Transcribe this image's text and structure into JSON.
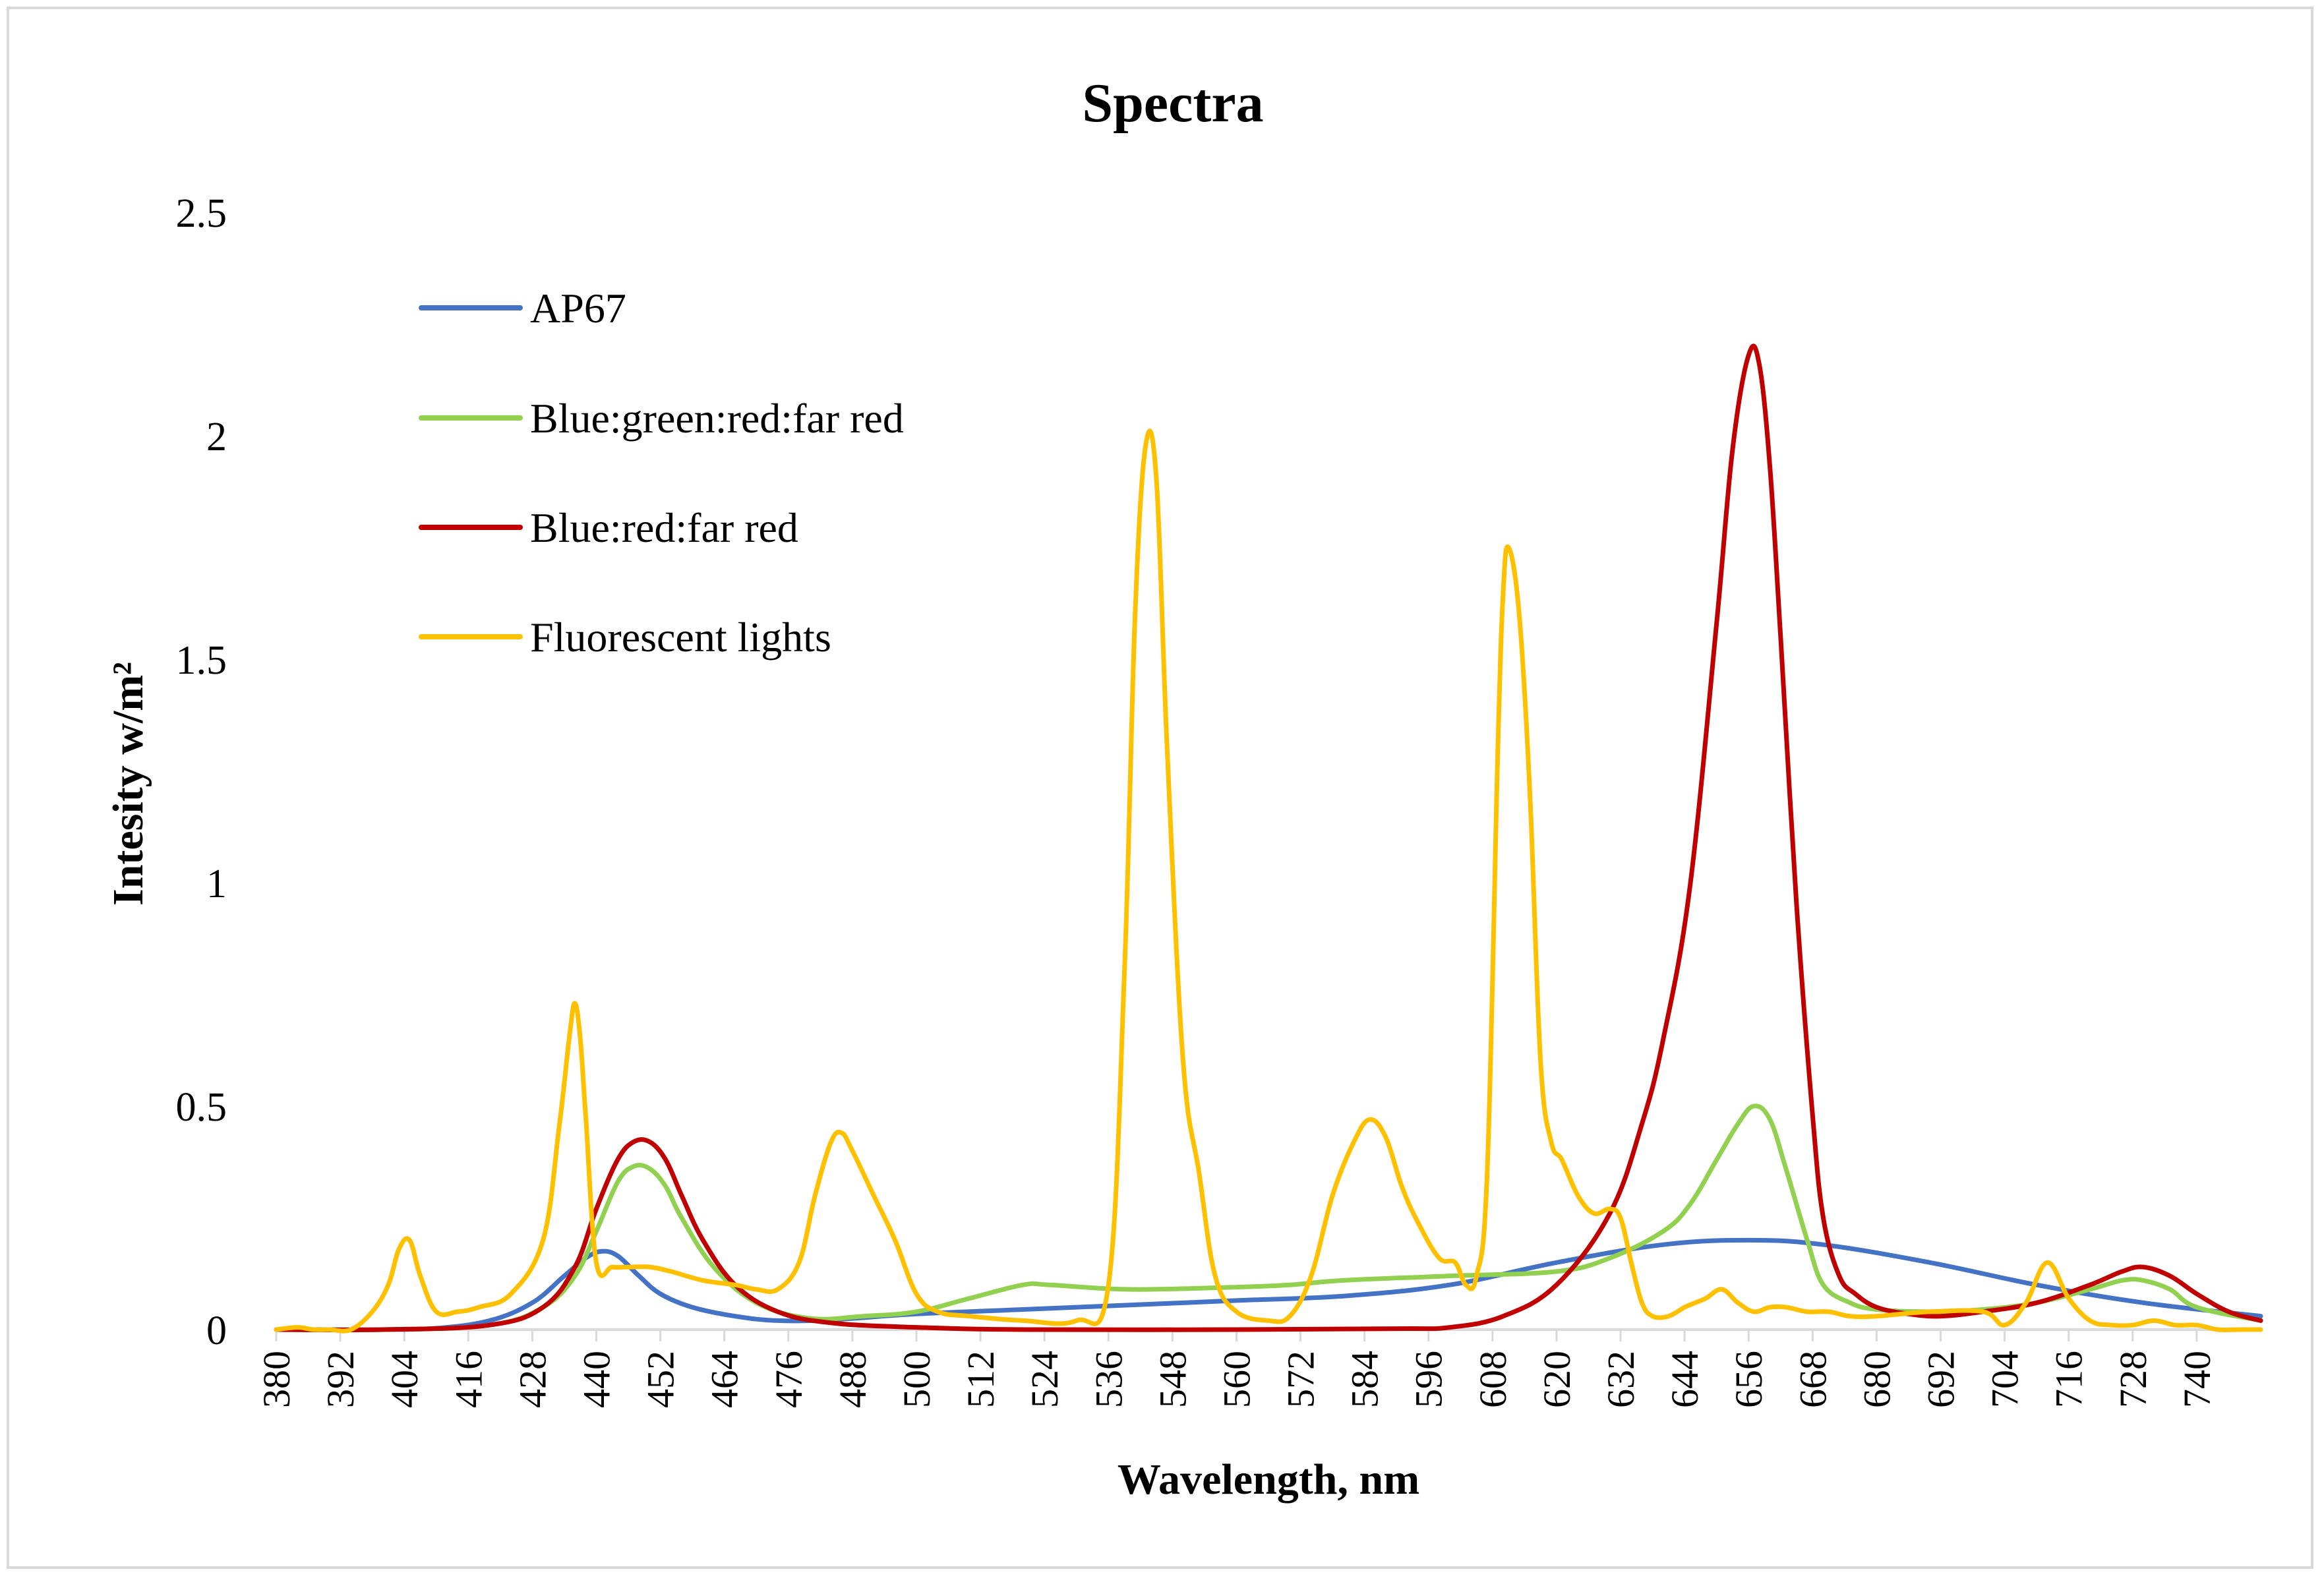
{
  "chart_data": {
    "type": "line",
    "title": "Spectra",
    "xlabel": "Wavelength, nm",
    "ylabel": "Intesity w/m²",
    "ylim": [
      0,
      2.5
    ],
    "yticks": [
      "0",
      "0.5",
      "1",
      "1.5",
      "2",
      "2.5"
    ],
    "xlim": [
      380,
      752
    ],
    "xticks": [
      "380",
      "392",
      "404",
      "416",
      "428",
      "440",
      "452",
      "464",
      "476",
      "488",
      "500",
      "512",
      "524",
      "536",
      "548",
      "560",
      "572",
      "584",
      "596",
      "608",
      "620",
      "632",
      "644",
      "656",
      "668",
      "680",
      "692",
      "704",
      "716",
      "728",
      "740"
    ],
    "grid": false,
    "legend_position": "top-left",
    "series": [
      {
        "name": "AP67",
        "color": "#4472c4",
        "x": [
          380,
          390,
          400,
          410,
          420,
          428,
          434,
          438,
          441,
          444,
          448,
          452,
          458,
          466,
          474,
          484,
          500,
          520,
          540,
          560,
          580,
          600,
          620,
          640,
          656,
          670,
          690,
          710,
          730,
          752
        ],
        "y": [
          0,
          0,
          0,
          0.003,
          0.02,
          0.06,
          0.12,
          0.16,
          0.175,
          0.165,
          0.12,
          0.08,
          0.05,
          0.03,
          0.02,
          0.022,
          0.035,
          0.045,
          0.055,
          0.065,
          0.075,
          0.1,
          0.15,
          0.19,
          0.2,
          0.19,
          0.15,
          0.1,
          0.06,
          0.03
        ]
      },
      {
        "name": "Blue:green:red:far red",
        "color": "#92d050",
        "x": [
          380,
          400,
          420,
          430,
          436,
          440,
          444,
          447,
          450,
          453,
          456,
          462,
          470,
          480,
          490,
          500,
          510,
          520,
          525,
          540,
          560,
          570,
          580,
          600,
          620,
          630,
          640,
          645,
          650,
          654,
          657,
          660,
          663,
          667,
          670,
          675,
          680,
          690,
          700,
          710,
          720,
          726,
          730,
          735,
          740,
          752
        ],
        "y": [
          0,
          0,
          0.01,
          0.05,
          0.12,
          0.22,
          0.33,
          0.365,
          0.36,
          0.32,
          0.25,
          0.14,
          0.06,
          0.025,
          0.03,
          0.04,
          0.07,
          0.1,
          0.1,
          0.09,
          0.095,
          0.1,
          0.11,
          0.12,
          0.13,
          0.16,
          0.22,
          0.28,
          0.38,
          0.46,
          0.5,
          0.47,
          0.36,
          0.2,
          0.1,
          0.06,
          0.045,
          0.04,
          0.045,
          0.06,
          0.09,
          0.11,
          0.11,
          0.09,
          0.05,
          0.02
        ]
      },
      {
        "name": "Blue:red:far red",
        "color": "#c00000",
        "x": [
          380,
          400,
          420,
          430,
          436,
          440,
          444,
          447,
          450,
          453,
          456,
          460,
          466,
          474,
          484,
          500,
          520,
          560,
          590,
          600,
          610,
          620,
          630,
          636,
          640,
          645,
          650,
          653,
          656,
          658,
          660,
          662,
          665,
          668,
          670,
          673,
          676,
          680,
          686,
          692,
          700,
          710,
          720,
          726,
          730,
          735,
          740,
          746,
          752
        ],
        "y": [
          0,
          0,
          0.01,
          0.05,
          0.14,
          0.27,
          0.38,
          0.42,
          0.42,
          0.38,
          0.3,
          0.2,
          0.1,
          0.04,
          0.015,
          0.005,
          0,
          0,
          0.002,
          0.005,
          0.03,
          0.1,
          0.26,
          0.46,
          0.65,
          0.99,
          1.58,
          1.97,
          2.18,
          2.16,
          1.93,
          1.55,
          0.95,
          0.48,
          0.25,
          0.12,
          0.08,
          0.05,
          0.035,
          0.03,
          0.04,
          0.06,
          0.1,
          0.13,
          0.14,
          0.12,
          0.08,
          0.04,
          0.02
        ]
      },
      {
        "name": "Fluorescent lights",
        "color": "#ffc000",
        "x": [
          380,
          384,
          387,
          390,
          394,
          398,
          401,
          403,
          405,
          407,
          410,
          414,
          418,
          424,
          430,
          433,
          435,
          436,
          437,
          438,
          440,
          443,
          446,
          450,
          454,
          460,
          466,
          470,
          474,
          478,
          481,
          484,
          486,
          488,
          492,
          496,
          500,
          504,
          510,
          520,
          530,
          536,
          539,
          541,
          543,
          545,
          547,
          550,
          553,
          556,
          560,
          566,
          570,
          574,
          578,
          582,
          585,
          588,
          591,
          594,
          598,
          601,
          603,
          605,
          607,
          609,
          610,
          611,
          613,
          615,
          617,
          619,
          621,
          624,
          627,
          630,
          632,
          634,
          636,
          638,
          641,
          644,
          646,
          648,
          651,
          654,
          657,
          660,
          663,
          667,
          671,
          675,
          680,
          690,
          700,
          704,
          708,
          712,
          716,
          720,
          724,
          728,
          732,
          736,
          740,
          744,
          748,
          752
        ],
        "y": [
          0,
          0.005,
          0,
          0,
          0,
          0.04,
          0.1,
          0.18,
          0.2,
          0.12,
          0.04,
          0.04,
          0.05,
          0.08,
          0.2,
          0.45,
          0.66,
          0.73,
          0.65,
          0.48,
          0.15,
          0.14,
          0.14,
          0.14,
          0.13,
          0.11,
          0.1,
          0.09,
          0.09,
          0.15,
          0.3,
          0.42,
          0.44,
          0.4,
          0.3,
          0.2,
          0.08,
          0.04,
          0.03,
          0.02,
          0.02,
          0.1,
          0.8,
          1.6,
          1.98,
          1.9,
          1.3,
          0.6,
          0.35,
          0.12,
          0.04,
          0.02,
          0.03,
          0.12,
          0.3,
          0.42,
          0.47,
          0.43,
          0.32,
          0.24,
          0.16,
          0.15,
          0.1,
          0.12,
          0.35,
          1.3,
          1.65,
          1.75,
          1.6,
          1.2,
          0.6,
          0.42,
          0.38,
          0.3,
          0.26,
          0.27,
          0.25,
          0.15,
          0.06,
          0.03,
          0.03,
          0.05,
          0.06,
          0.07,
          0.09,
          0.06,
          0.04,
          0.05,
          0.05,
          0.04,
          0.04,
          0.03,
          0.03,
          0.04,
          0.04,
          0.01,
          0.06,
          0.15,
          0.07,
          0.02,
          0.01,
          0.01,
          0.02,
          0.01,
          0.01,
          0,
          0,
          0
        ]
      }
    ]
  }
}
